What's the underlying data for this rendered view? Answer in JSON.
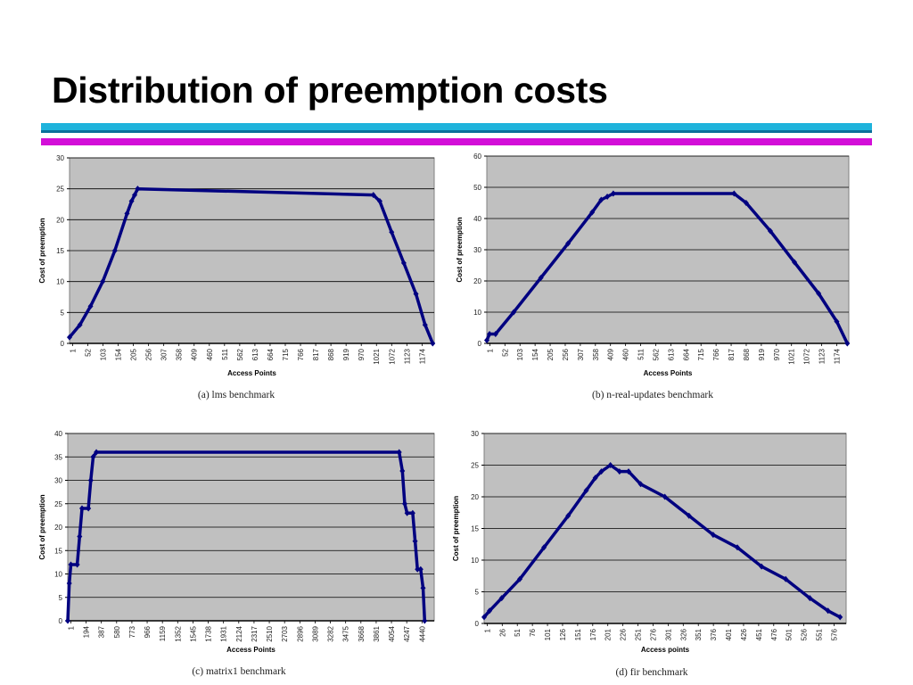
{
  "slide": {
    "title": "Distribution of preemption costs",
    "rule_colors": {
      "cyan": "#1eb3dc",
      "cyan_dark": "#0b6f9a",
      "magenta": "#d30fd8"
    }
  },
  "style": {
    "plot_background": "#c0c0c0",
    "marker_color": "#000080",
    "gridline_color": "#000000"
  },
  "chart_data": [
    {
      "type": "scatter",
      "caption": "(a) lms benchmark",
      "xlabel": "Access Points",
      "ylabel": "Cost of preemption",
      "ylim": [
        0,
        30
      ],
      "yticks": [
        0,
        5,
        10,
        15,
        20,
        25,
        30
      ],
      "xlim": [
        1,
        1200
      ],
      "xticks": [
        "1",
        "52",
        "103",
        "154",
        "205",
        "256",
        "307",
        "358",
        "409",
        "460",
        "511",
        "562",
        "613",
        "664",
        "715",
        "766",
        "817",
        "868",
        "919",
        "970",
        "1021",
        "1072",
        "1123",
        "1174"
      ],
      "grid": true,
      "series": [
        {
          "points": [
            [
              1,
              1
            ],
            [
              35,
              3
            ],
            [
              70,
              6
            ],
            [
              110,
              10
            ],
            [
              150,
              15
            ],
            [
              190,
              21
            ],
            [
              205,
              23
            ],
            [
              215,
              24
            ],
            [
              225,
              25
            ],
            [
              1000,
              24
            ],
            [
              1021,
              23
            ],
            [
              1060,
              18
            ],
            [
              1100,
              13
            ],
            [
              1140,
              8
            ],
            [
              1170,
              3
            ],
            [
              1195,
              0
            ]
          ]
        }
      ]
    },
    {
      "type": "scatter",
      "caption": "(b) n-real-updates benchmark",
      "xlabel": "Access Points",
      "ylabel": "Cost of preemption",
      "ylim": [
        0,
        60
      ],
      "yticks": [
        0,
        10,
        20,
        30,
        40,
        50,
        60
      ],
      "xlim": [
        1,
        1200
      ],
      "xticks": [
        "1",
        "52",
        "103",
        "154",
        "205",
        "256",
        "307",
        "358",
        "409",
        "460",
        "511",
        "562",
        "613",
        "664",
        "715",
        "766",
        "817",
        "868",
        "919",
        "970",
        "1021",
        "1072",
        "1123",
        "1174"
      ],
      "grid": true,
      "series": [
        {
          "points": [
            [
              1,
              1
            ],
            [
              10,
              3
            ],
            [
              30,
              3
            ],
            [
              90,
              10
            ],
            [
              180,
              21
            ],
            [
              270,
              32
            ],
            [
              350,
              42
            ],
            [
              380,
              46
            ],
            [
              400,
              47
            ],
            [
              420,
              48
            ],
            [
              820,
              48
            ],
            [
              860,
              45
            ],
            [
              940,
              36
            ],
            [
              1020,
              26
            ],
            [
              1100,
              16
            ],
            [
              1160,
              7
            ],
            [
              1195,
              0
            ]
          ]
        }
      ]
    },
    {
      "type": "scatter",
      "caption": "(c) matrix1 benchmark",
      "xlabel": "Access Points",
      "ylabel": "Cost of preemption",
      "ylim": [
        0,
        40
      ],
      "yticks": [
        0,
        5,
        10,
        15,
        20,
        25,
        30,
        35,
        40
      ],
      "xlim": [
        1,
        4600
      ],
      "xticks": [
        "1",
        "194",
        "387",
        "580",
        "773",
        "966",
        "1159",
        "1352",
        "1545",
        "1738",
        "1931",
        "2124",
        "2317",
        "2510",
        "2703",
        "2896",
        "3089",
        "3282",
        "3475",
        "3668",
        "3861",
        "4054",
        "4247",
        "4440"
      ],
      "grid": true,
      "series": [
        {
          "points": [
            [
              1,
              0
            ],
            [
              20,
              8
            ],
            [
              40,
              12
            ],
            [
              120,
              12
            ],
            [
              150,
              18
            ],
            [
              180,
              24
            ],
            [
              260,
              24
            ],
            [
              290,
              30
            ],
            [
              320,
              35
            ],
            [
              360,
              36
            ],
            [
              4160,
              36
            ],
            [
              4200,
              32
            ],
            [
              4230,
              25
            ],
            [
              4260,
              23
            ],
            [
              4330,
              23
            ],
            [
              4360,
              17
            ],
            [
              4390,
              11
            ],
            [
              4430,
              11
            ],
            [
              4460,
              7
            ],
            [
              4480,
              0
            ]
          ]
        }
      ]
    },
    {
      "type": "scatter",
      "caption": "(d) fir benchmark",
      "xlabel": "Access points",
      "ylabel": "Cost of preemption",
      "ylim": [
        0,
        30
      ],
      "yticks": [
        0,
        5,
        10,
        15,
        20,
        25,
        30
      ],
      "xlim": [
        1,
        600
      ],
      "xticks": [
        "1",
        "26",
        "51",
        "76",
        "101",
        "126",
        "151",
        "176",
        "201",
        "226",
        "251",
        "276",
        "301",
        "326",
        "351",
        "376",
        "401",
        "426",
        "451",
        "476",
        "501",
        "526",
        "551",
        "576"
      ],
      "grid": true,
      "series": [
        {
          "points": [
            [
              1,
              1
            ],
            [
              10,
              2
            ],
            [
              30,
              4
            ],
            [
              60,
              7
            ],
            [
              100,
              12
            ],
            [
              140,
              17
            ],
            [
              170,
              21
            ],
            [
              185,
              23
            ],
            [
              195,
              24
            ],
            [
              210,
              25
            ],
            [
              225,
              24
            ],
            [
              240,
              24
            ],
            [
              260,
              22
            ],
            [
              300,
              20
            ],
            [
              340,
              17
            ],
            [
              380,
              14
            ],
            [
              420,
              12
            ],
            [
              460,
              9
            ],
            [
              500,
              7
            ],
            [
              540,
              4
            ],
            [
              570,
              2
            ],
            [
              590,
              1
            ]
          ]
        }
      ]
    }
  ]
}
